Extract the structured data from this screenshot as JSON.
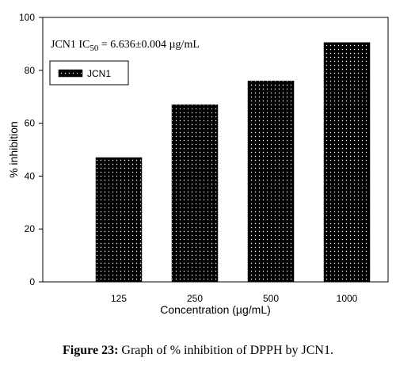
{
  "chart_data": {
    "type": "bar",
    "categories": [
      "125",
      "250",
      "500",
      "1000"
    ],
    "series": [
      {
        "name": "JCN1",
        "values": [
          47,
          67,
          76,
          90.5
        ]
      }
    ],
    "xlabel": "Concentration (µg/mL)",
    "ylabel": "% inhibition",
    "ylim": [
      0,
      100
    ],
    "yticks": [
      0,
      20,
      40,
      60,
      80,
      100
    ],
    "grid": false,
    "legend_position": "top-left",
    "bar_color": "#000000",
    "bar_fill": "dotted",
    "annotation": {
      "prefix": "JCN1 IC",
      "subscript": "50",
      "suffix": " = 6.636±0.004 µg/mL"
    }
  },
  "caption": {
    "label": "Figure 23:",
    "text": " Graph of % inhibition of DPPH by JCN1."
  }
}
